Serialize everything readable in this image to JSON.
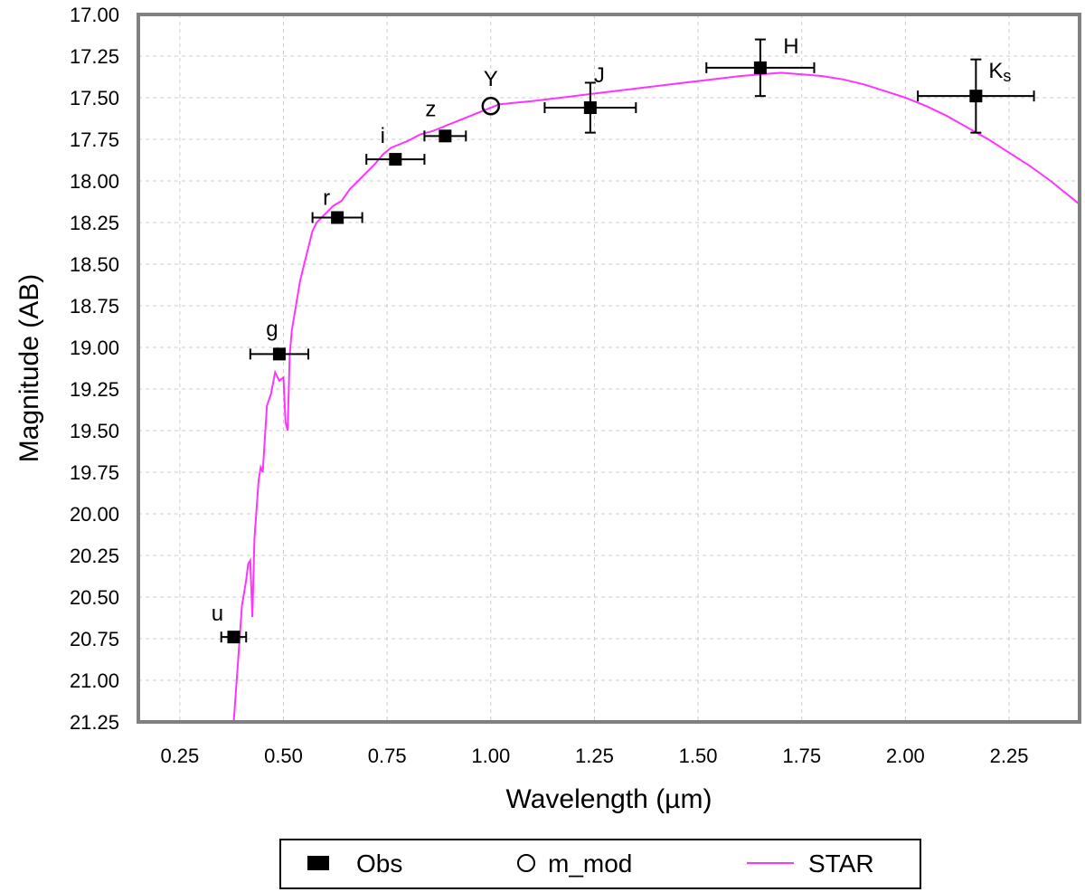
{
  "chart_data": {
    "type": "scatter",
    "xlabel": "Wavelength (µm)",
    "ylabel": "Magnitude (AB)",
    "xlim": [
      0.15,
      2.42
    ],
    "ylim": [
      17.0,
      21.25
    ],
    "y_inverted": true,
    "grid": true,
    "x_ticks": [
      "0.25",
      "0.50",
      "0.75",
      "1.00",
      "1.25",
      "1.50",
      "1.75",
      "2.00",
      "2.25"
    ],
    "y_ticks": [
      "17.00",
      "17.25",
      "17.50",
      "17.75",
      "18.00",
      "18.25",
      "18.50",
      "18.75",
      "19.00",
      "19.25",
      "19.50",
      "19.75",
      "20.00",
      "20.25",
      "20.50",
      "20.75",
      "21.00",
      "21.25"
    ],
    "series": [
      {
        "name": "Obs",
        "marker": "filled-square",
        "points": [
          {
            "band": "u",
            "x": 0.38,
            "y": 20.74,
            "xerr": 0.03,
            "yerr": 0.0
          },
          {
            "band": "g",
            "x": 0.49,
            "y": 19.04,
            "xerr": 0.07,
            "yerr": 0.0
          },
          {
            "band": "r",
            "x": 0.63,
            "y": 18.22,
            "xerr": 0.06,
            "yerr": 0.0
          },
          {
            "band": "i",
            "x": 0.77,
            "y": 17.87,
            "xerr": 0.07,
            "yerr": 0.0
          },
          {
            "band": "z",
            "x": 0.89,
            "y": 17.73,
            "xerr": 0.05,
            "yerr": 0.0
          },
          {
            "band": "J",
            "x": 1.24,
            "y": 17.56,
            "xerr": 0.11,
            "yerr": 0.15
          },
          {
            "band": "H",
            "x": 1.65,
            "y": 17.32,
            "xerr": 0.13,
            "yerr": 0.17
          },
          {
            "band": "Ks",
            "x": 2.17,
            "y": 17.49,
            "xerr": 0.14,
            "yerr": 0.22
          }
        ]
      },
      {
        "name": "m_mod",
        "marker": "open-circle",
        "points": [
          {
            "band": "Y",
            "x": 1.0,
            "y": 17.55
          }
        ]
      },
      {
        "name": "STAR",
        "marker": "line",
        "color": "#ff33ff",
        "x": [
          0.38,
          0.39,
          0.4,
          0.41,
          0.415,
          0.42,
          0.425,
          0.43,
          0.44,
          0.445,
          0.45,
          0.46,
          0.47,
          0.48,
          0.49,
          0.5,
          0.505,
          0.51,
          0.515,
          0.52,
          0.53,
          0.54,
          0.55,
          0.56,
          0.57,
          0.58,
          0.6,
          0.62,
          0.64,
          0.66,
          0.68,
          0.7,
          0.72,
          0.74,
          0.76,
          0.78,
          0.8,
          0.83,
          0.86,
          0.9,
          0.94,
          0.98,
          1.02,
          1.06,
          1.1,
          1.2,
          1.3,
          1.4,
          1.5,
          1.6,
          1.65,
          1.7,
          1.75,
          1.8,
          1.85,
          1.9,
          1.95,
          2.0,
          2.05,
          2.1,
          2.15,
          2.2,
          2.25,
          2.3,
          2.35,
          2.42
        ],
        "y": [
          21.25,
          20.9,
          20.55,
          20.4,
          20.3,
          20.28,
          20.62,
          20.15,
          19.8,
          19.72,
          19.75,
          19.35,
          19.28,
          19.15,
          19.2,
          19.18,
          19.45,
          19.5,
          19.05,
          18.9,
          18.75,
          18.6,
          18.5,
          18.4,
          18.3,
          18.25,
          18.2,
          18.15,
          18.12,
          18.05,
          18.0,
          17.95,
          17.9,
          17.84,
          17.8,
          17.78,
          17.76,
          17.72,
          17.7,
          17.66,
          17.62,
          17.58,
          17.54,
          17.53,
          17.52,
          17.49,
          17.46,
          17.43,
          17.4,
          17.37,
          17.36,
          17.35,
          17.36,
          17.37,
          17.39,
          17.42,
          17.46,
          17.5,
          17.55,
          17.61,
          17.68,
          17.75,
          17.83,
          17.91,
          18.0,
          18.14
        ]
      }
    ],
    "legend": {
      "placement": "bottom",
      "entries": [
        {
          "label": "Obs",
          "marker": "filled-square"
        },
        {
          "label": "m_mod",
          "marker": "open-circle"
        },
        {
          "label": "STAR",
          "marker": "line"
        }
      ]
    },
    "colors": {
      "curve": "#ff33ff",
      "frame": "#808080",
      "grid": "#cccccc",
      "points": "#000000"
    }
  }
}
